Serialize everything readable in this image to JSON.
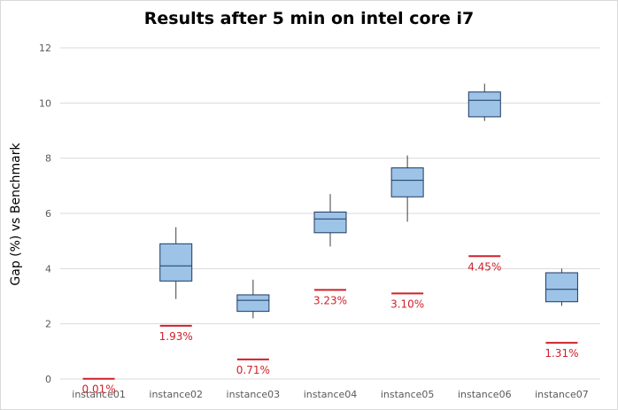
{
  "chart_data": {
    "type": "box",
    "title": "Results after 5 min on intel core i7",
    "ylabel": "Gap (%) vs Benchmark",
    "xlabel": "",
    "ylim": [
      0,
      12
    ],
    "yticks": [
      0,
      2,
      4,
      6,
      8,
      10,
      12
    ],
    "grid": true,
    "categories": [
      "instance01",
      "instance02",
      "instance03",
      "instance04",
      "instance05",
      "instance06",
      "instance07"
    ],
    "boxes": [
      null,
      {
        "min": 2.9,
        "q1": 3.55,
        "median": 4.1,
        "q3": 4.9,
        "max": 5.5
      },
      {
        "min": 2.2,
        "q1": 2.45,
        "median": 2.85,
        "q3": 3.05,
        "max": 3.6
      },
      {
        "min": 4.8,
        "q1": 5.3,
        "median": 5.8,
        "q3": 6.05,
        "max": 6.7
      },
      {
        "min": 5.7,
        "q1": 6.6,
        "median": 7.2,
        "q3": 7.65,
        "max": 8.1
      },
      {
        "min": 9.35,
        "q1": 9.5,
        "median": 10.1,
        "q3": 10.4,
        "max": 10.7
      },
      {
        "min": 2.65,
        "q1": 2.8,
        "median": 3.25,
        "q3": 3.85,
        "max": 4.0
      }
    ],
    "benchmark": {
      "values": [
        0.01,
        1.93,
        0.71,
        3.23,
        3.1,
        4.45,
        1.31
      ],
      "labels": [
        "0.01%",
        "1.93%",
        "0.71%",
        "3.23%",
        "3.10%",
        "4.45%",
        "1.31%"
      ]
    },
    "colors": {
      "box_fill": "#9dc3e6",
      "box_stroke": "#1f3864",
      "benchmark": "#d0202a",
      "grid": "#d9d9d9"
    }
  }
}
